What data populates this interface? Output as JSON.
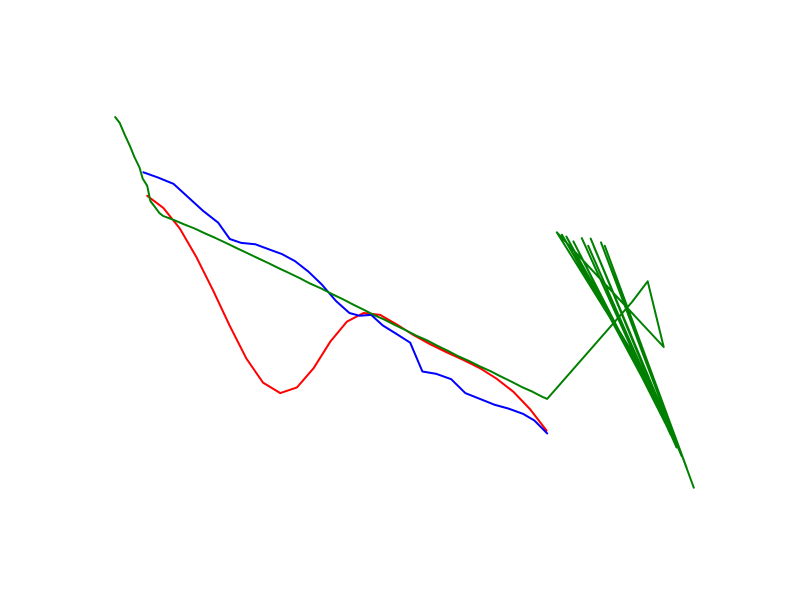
{
  "chart_data": {
    "type": "line",
    "title": "",
    "xlabel": "",
    "ylabel": "",
    "axes_visible": false,
    "grid": false,
    "legend": "none",
    "xlim": [
      0,
      100
    ],
    "ylim": [
      0,
      100
    ],
    "series": [
      {
        "color": "#ff0000",
        "values": [
          [
            10.5,
            71.7
          ],
          [
            13.0,
            69.2
          ],
          [
            15.6,
            64.9
          ],
          [
            18.2,
            58.9
          ],
          [
            20.8,
            52.0
          ],
          [
            23.4,
            44.6
          ],
          [
            26.0,
            37.8
          ],
          [
            28.6,
            32.8
          ],
          [
            31.3,
            30.6
          ],
          [
            33.9,
            31.8
          ],
          [
            36.5,
            35.8
          ],
          [
            39.1,
            41.3
          ],
          [
            41.7,
            45.5
          ],
          [
            44.3,
            47.3
          ],
          [
            46.9,
            46.9
          ],
          [
            49.5,
            44.9
          ],
          [
            52.1,
            42.7
          ],
          [
            54.7,
            40.8
          ],
          [
            57.3,
            39.1
          ],
          [
            59.9,
            37.5
          ],
          [
            62.5,
            35.8
          ],
          [
            65.1,
            33.6
          ],
          [
            67.7,
            30.9
          ],
          [
            70.3,
            27.3
          ],
          [
            72.9,
            22.8
          ]
        ]
      },
      {
        "color": "#0000ff",
        "values": [
          [
            9.9,
            76.6
          ],
          [
            12.2,
            75.5
          ],
          [
            14.6,
            74.2
          ],
          [
            16.9,
            71.4
          ],
          [
            19.3,
            68.5
          ],
          [
            21.6,
            66.1
          ],
          [
            23.4,
            62.7
          ],
          [
            25.2,
            61.9
          ],
          [
            27.4,
            61.6
          ],
          [
            29.4,
            60.6
          ],
          [
            31.5,
            59.6
          ],
          [
            33.6,
            58.1
          ],
          [
            35.7,
            55.9
          ],
          [
            37.8,
            53.2
          ],
          [
            40.0,
            49.8
          ],
          [
            42.1,
            47.3
          ],
          [
            43.7,
            46.7
          ],
          [
            45.5,
            46.9
          ],
          [
            47.3,
            44.7
          ],
          [
            49.5,
            42.9
          ],
          [
            51.6,
            41.1
          ],
          [
            53.5,
            35.1
          ],
          [
            55.7,
            34.6
          ],
          [
            58.0,
            33.5
          ],
          [
            60.2,
            30.6
          ],
          [
            62.5,
            29.4
          ],
          [
            64.7,
            28.2
          ],
          [
            66.9,
            27.4
          ],
          [
            69.2,
            26.3
          ],
          [
            71.0,
            24.9
          ],
          [
            73.0,
            22.2
          ]
        ]
      },
      {
        "color": "#008000",
        "values": [
          [
            5.5,
            88.1
          ],
          [
            6.2,
            86.9
          ],
          [
            7.0,
            84.4
          ],
          [
            7.8,
            82.1
          ],
          [
            8.5,
            79.8
          ],
          [
            9.3,
            77.6
          ],
          [
            9.8,
            75.3
          ],
          [
            10.5,
            73.8
          ],
          [
            11.0,
            70.6
          ],
          [
            11.7,
            69.4
          ],
          [
            12.4,
            68.1
          ],
          [
            13.0,
            67.5
          ],
          [
            14.6,
            66.7
          ],
          [
            16.2,
            65.8
          ],
          [
            17.9,
            64.9
          ],
          [
            19.5,
            63.9
          ],
          [
            21.2,
            62.9
          ],
          [
            22.8,
            61.9
          ],
          [
            24.5,
            60.8
          ],
          [
            26.1,
            59.8
          ],
          [
            27.8,
            58.7
          ],
          [
            29.4,
            57.7
          ],
          [
            31.1,
            56.6
          ],
          [
            32.7,
            55.6
          ],
          [
            34.4,
            54.5
          ],
          [
            36.0,
            53.4
          ],
          [
            37.7,
            52.4
          ],
          [
            39.3,
            51.3
          ],
          [
            41.0,
            50.2
          ],
          [
            42.6,
            49.1
          ],
          [
            44.3,
            48.0
          ],
          [
            45.9,
            46.9
          ],
          [
            47.6,
            45.9
          ],
          [
            49.2,
            44.8
          ],
          [
            50.9,
            43.7
          ],
          [
            52.5,
            42.6
          ],
          [
            54.2,
            41.6
          ],
          [
            55.8,
            40.5
          ],
          [
            57.5,
            39.4
          ],
          [
            59.1,
            38.3
          ],
          [
            60.8,
            37.3
          ],
          [
            62.4,
            36.2
          ],
          [
            64.1,
            35.2
          ],
          [
            65.7,
            34.1
          ],
          [
            67.4,
            33.0
          ],
          [
            69.0,
            31.9
          ],
          [
            70.7,
            30.9
          ],
          [
            72.3,
            29.8
          ],
          [
            73.0,
            29.4
          ],
          [
            86.2,
            49.5
          ],
          [
            88.7,
            53.9
          ],
          [
            91.2,
            40.2
          ],
          [
            74.5,
            64.1
          ],
          [
            87.4,
            36.5
          ],
          [
            75.3,
            63.6
          ],
          [
            89.2,
            31.6
          ],
          [
            76.0,
            63.2
          ],
          [
            90.4,
            27.5
          ],
          [
            77.1,
            62.2
          ],
          [
            91.5,
            24.2
          ],
          [
            78.4,
            62.9
          ],
          [
            92.3,
            21.9
          ],
          [
            79.4,
            61.3
          ],
          [
            93.2,
            19.3
          ],
          [
            79.8,
            62.8
          ],
          [
            94.0,
            17.5
          ],
          [
            80.3,
            61.1
          ],
          [
            93.6,
            18.8
          ],
          [
            81.4,
            62.0
          ],
          [
            94.8,
            15.0
          ],
          [
            82.0,
            61.3
          ],
          [
            95.9,
            10.9
          ]
        ]
      }
    ]
  }
}
